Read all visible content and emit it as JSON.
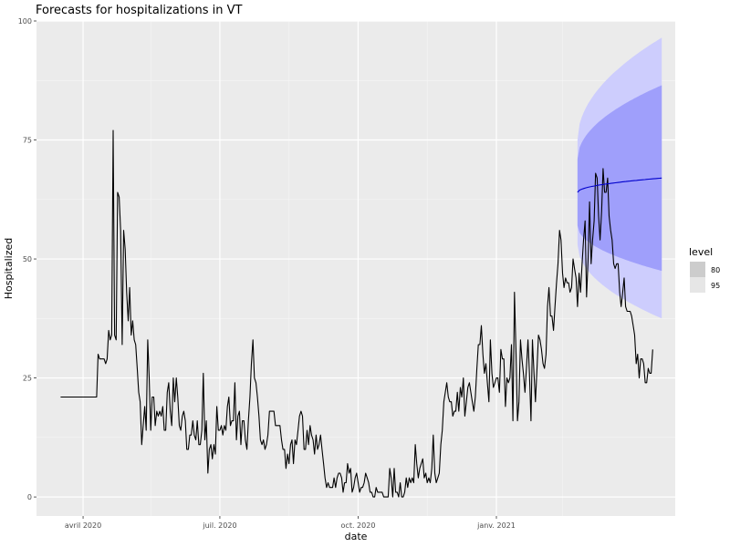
{
  "chart_data": {
    "type": "line",
    "title": "Forecasts for hospitalizations in VT",
    "xlabel": "date",
    "ylabel": "Hospitalized",
    "ylim": [
      -4,
      100
    ],
    "xlim": [
      "2020-03-01",
      "2021-04-30"
    ],
    "x_ticks": [
      {
        "date": "2020-04-01",
        "label": "avril 2020"
      },
      {
        "date": "2020-07-01",
        "label": "juil. 2020"
      },
      {
        "date": "2020-10-01",
        "label": "oct. 2020"
      },
      {
        "date": "2021-01-01",
        "label": "janv. 2021"
      }
    ],
    "x_minor_ticks": [
      "2020-05-16",
      "2020-08-16",
      "2020-11-16",
      "2021-02-14"
    ],
    "y_ticks": [
      0,
      25,
      50,
      75,
      100
    ],
    "grid": true,
    "background": "#ebebeb",
    "series": [
      {
        "kind": "observed",
        "color": "#000000",
        "start": "2020-03-17",
        "values": [
          21,
          21,
          21,
          21,
          21,
          21,
          21,
          21,
          21,
          21,
          21,
          21,
          21,
          21,
          21,
          21,
          21,
          21,
          21,
          21,
          21,
          21,
          21,
          21,
          21,
          30,
          29,
          29,
          29,
          29,
          28,
          29,
          35,
          33,
          34,
          77,
          34,
          33,
          64,
          63,
          56,
          32,
          56,
          52,
          43,
          37,
          44,
          34,
          37,
          33,
          32,
          27,
          22,
          20,
          11,
          15,
          19,
          14,
          33,
          25,
          14,
          21,
          21,
          15,
          18,
          17,
          18,
          17,
          19,
          14,
          14,
          22,
          24,
          18,
          15,
          25,
          20,
          25,
          21,
          15,
          14,
          17,
          18,
          16,
          10,
          10,
          13,
          13,
          16,
          13,
          12,
          16,
          11,
          11,
          14,
          26,
          12,
          16,
          5,
          10,
          11,
          8,
          11,
          9,
          19,
          14,
          14,
          15,
          13,
          15,
          14,
          19,
          21,
          15,
          16,
          16,
          24,
          12,
          17,
          18,
          11,
          16,
          16,
          12,
          10,
          16,
          21,
          28,
          33,
          25,
          24,
          21,
          17,
          12,
          11,
          12,
          10,
          11,
          13,
          18,
          18,
          18,
          18,
          15,
          15,
          15,
          15,
          12,
          10,
          10,
          6,
          9,
          7,
          11,
          12,
          7,
          12,
          11,
          14,
          17,
          18,
          17,
          10,
          10,
          14,
          11,
          15,
          13,
          12,
          9,
          13,
          10,
          11,
          13,
          10,
          7,
          4,
          2,
          3,
          2,
          2,
          2,
          4,
          2,
          4,
          5,
          5,
          4,
          1,
          3,
          3,
          7,
          5,
          6,
          1,
          2,
          4,
          5,
          3,
          1,
          2,
          2,
          3,
          5,
          4,
          3,
          1,
          1,
          0,
          0,
          2,
          1,
          1,
          1,
          1,
          0,
          0,
          0,
          0,
          6,
          4,
          0,
          6,
          1,
          1,
          0,
          3,
          0,
          0,
          1,
          4,
          2,
          4,
          3,
          4,
          3,
          11,
          7,
          4,
          6,
          7,
          8,
          4,
          5,
          3,
          4,
          3,
          6,
          13,
          5,
          3,
          4,
          5,
          11,
          14,
          20,
          22,
          24,
          21,
          20,
          20,
          17,
          18,
          18,
          22,
          18,
          23,
          21,
          25,
          17,
          20,
          23,
          24,
          22,
          20,
          18,
          21,
          27,
          32,
          32,
          36,
          30,
          26,
          28,
          24,
          20,
          33,
          26,
          23,
          24,
          25,
          25,
          22,
          31,
          29,
          29,
          19,
          25,
          24,
          25,
          32,
          16,
          43,
          31,
          16,
          20,
          33,
          29,
          26,
          22,
          27,
          33,
          26,
          16,
          33,
          26,
          20,
          27,
          34,
          33,
          31,
          28,
          27,
          30,
          40,
          44,
          38,
          38,
          35,
          40,
          45,
          49,
          56,
          54,
          47,
          44,
          46,
          45,
          45,
          43,
          44,
          50,
          48,
          46,
          40,
          47,
          43,
          49,
          54,
          58,
          42,
          50,
          62,
          49,
          54,
          58,
          68,
          67,
          59,
          54,
          60,
          69,
          64,
          64,
          67,
          59,
          56,
          54,
          49,
          48,
          49,
          49,
          43,
          40,
          43,
          46,
          40,
          39,
          39,
          39,
          38,
          36,
          34,
          28,
          30,
          25,
          29,
          29,
          28,
          24,
          24,
          27,
          26,
          26,
          31
        ]
      },
      {
        "kind": "forecast",
        "color": "#0000cc",
        "start": "2021-02-24",
        "end": "2021-04-21",
        "mean_start": 64,
        "mean_end": 67,
        "levels": [
          {
            "level": "80",
            "color": "#9f9ffb",
            "lo_start": 57,
            "hi_start": 71,
            "lo_end": 47.5,
            "hi_end": 86.5
          },
          {
            "level": "95",
            "color": "#cdcdfd",
            "lo_start": 53,
            "hi_start": 75,
            "lo_end": 37.5,
            "hi_end": 96.5
          }
        ]
      }
    ],
    "legend": {
      "title": "level",
      "position": "right",
      "items": [
        {
          "label": "80",
          "color": "#cccccc"
        },
        {
          "label": "95",
          "color": "#e6e6e6"
        }
      ]
    }
  }
}
